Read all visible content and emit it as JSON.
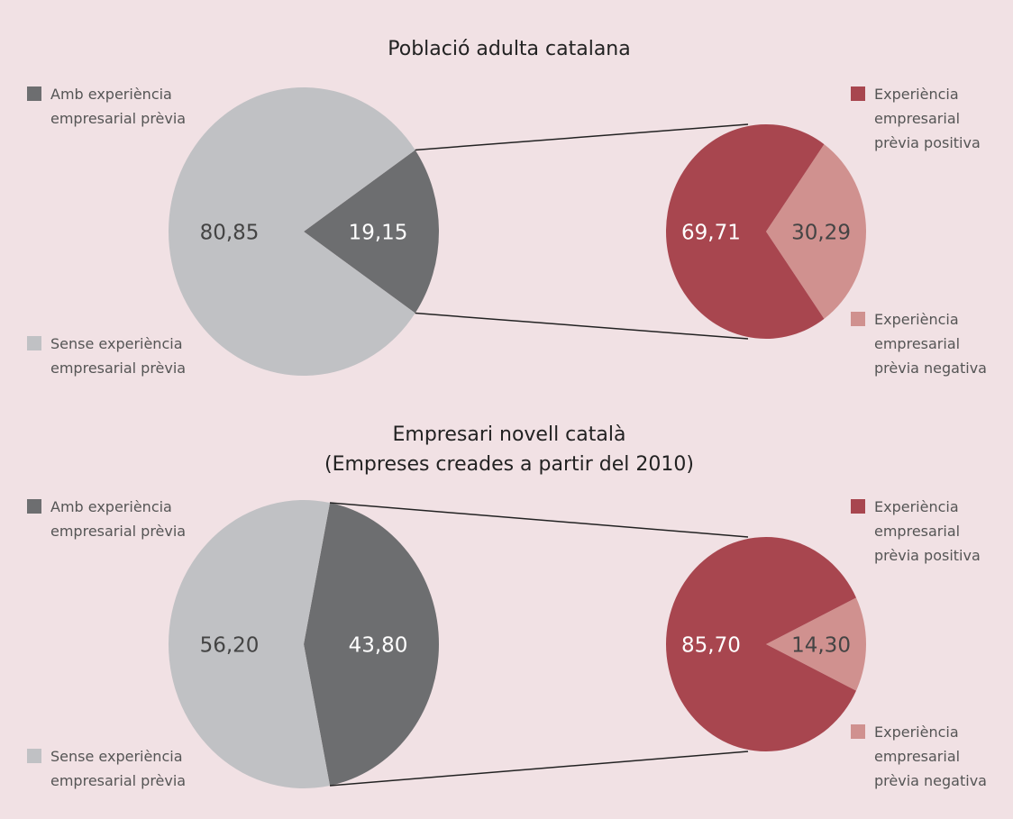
{
  "chart_data": [
    {
      "type": "pie",
      "title": "Població adulta catalana",
      "categories": [
        "Amb experiència empresarial prèvia",
        "Sense experiència empresarial prèvia"
      ],
      "values": [
        19.15,
        80.85
      ],
      "value_labels": [
        "19,15",
        "80,85"
      ],
      "colors": [
        "#6d6e70",
        "#c0c1c4"
      ],
      "detail": {
        "categories": [
          "Experiència empresarial prèvia positiva",
          "Experiència empresarial prèvia negativa"
        ],
        "values": [
          69.71,
          30.29
        ],
        "value_labels": [
          "69,71",
          "30,29"
        ],
        "colors": [
          "#a8464f",
          "#d0918f"
        ]
      }
    },
    {
      "type": "pie",
      "title": "Empresari novell català",
      "subtitle": "(Empreses creades a partir del 2010)",
      "categories": [
        "Amb experiència empresarial prèvia",
        "Sense experiència empresarial prèvia"
      ],
      "values": [
        43.8,
        56.2
      ],
      "value_labels": [
        "43,80",
        "56,20"
      ],
      "colors": [
        "#6d6e70",
        "#c0c1c4"
      ],
      "detail": {
        "categories": [
          "Experiència empresarial prèvia positiva",
          "Experiència empresarial prèvia negativa"
        ],
        "values": [
          85.7,
          14.3
        ],
        "value_labels": [
          "85,70",
          "14,30"
        ],
        "colors": [
          "#a8464f",
          "#d0918f"
        ]
      }
    }
  ]
}
